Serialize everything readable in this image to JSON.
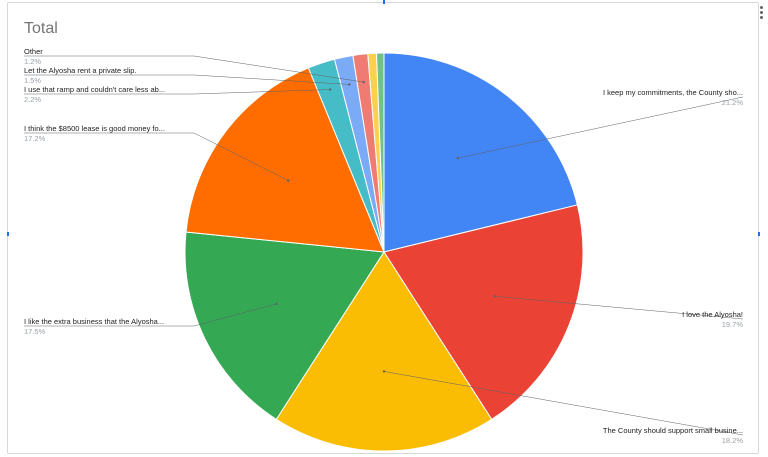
{
  "chart_data": {
    "type": "pie",
    "title": "Total",
    "slices": [
      {
        "label": "I keep my commitments, the County sho...",
        "percent": "21.2%",
        "value": 21.2,
        "color": "#4285f4"
      },
      {
        "label": "I love the Alyosha!",
        "percent": "19.7%",
        "value": 19.7,
        "color": "#ea4335"
      },
      {
        "label": "The County should support small busine...",
        "percent": "18.2%",
        "value": 18.2,
        "color": "#fbbc04"
      },
      {
        "label": "I like the extra business that the Alyosha...",
        "percent": "17.5%",
        "value": 17.5,
        "color": "#34a853"
      },
      {
        "label": "I think the $8500 lease is good money fo...",
        "percent": "17.2%",
        "value": 17.2,
        "color": "#ff6d01"
      },
      {
        "label": "I use that ramp and couldn't care less ab...",
        "percent": "2.2%",
        "value": 2.2,
        "color": "#46bdc6"
      },
      {
        "label": "Let the Alyosha rent a private slip.",
        "percent": "1.5%",
        "value": 1.5,
        "color": "#7baaf7"
      },
      {
        "label": "Other",
        "percent": "1.2%",
        "value": 1.2,
        "color": "#f07b72"
      },
      {
        "label": "",
        "percent": "",
        "value": 0.7,
        "color": "#fcd04f"
      },
      {
        "label": "",
        "percent": "",
        "value": 0.6,
        "color": "#71c287"
      }
    ],
    "legend": "callout-labels"
  }
}
